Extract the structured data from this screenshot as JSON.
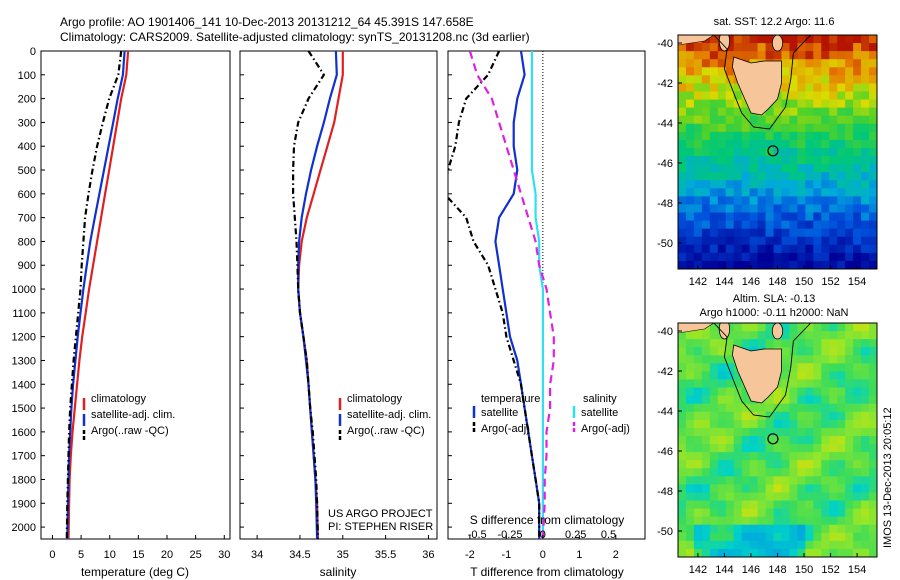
{
  "header": {
    "line1": "Argo profile: AO 1901406_141 10-Dec-2013 20131212_64 45.391S 147.658E",
    "line2": "Climatology: CARS2009. Satellite-adjusted climatology: synTS_20131208.nc (3d earlier)"
  },
  "credits": {
    "project": "US ARGO PROJECT",
    "pi": "PI: STEPHEN RISER"
  },
  "imos_stamp": "IMOS 13-Dec-2013 20:05:12",
  "colors": {
    "clim": "#e02020",
    "sat": "#1030d0",
    "argo": "#000000",
    "sal_sat": "#30e0f0",
    "sal_argo": "#e020e0"
  },
  "chart_data": [
    {
      "type": "line",
      "id": "temperature",
      "xlabel": "temperature (deg C)",
      "xlim": [
        -2,
        31
      ],
      "ylim": [
        0,
        2050
      ],
      "xticks": [
        0,
        5,
        10,
        15,
        20,
        25,
        30
      ],
      "yticks": [
        0,
        100,
        200,
        300,
        400,
        500,
        600,
        700,
        800,
        900,
        1000,
        1100,
        1200,
        1300,
        1400,
        1500,
        1600,
        1700,
        1800,
        1900,
        2000
      ],
      "legend": [
        "climatology",
        "satellite-adj. clim.",
        "Argo(..raw -QC)"
      ],
      "series": [
        {
          "name": "climatology",
          "color": "#e02020",
          "dash": "",
          "x": [
            13.2,
            12.9,
            12.0,
            11.3,
            10.6,
            9.9,
            9.2,
            8.5,
            7.8,
            7.1,
            6.4,
            5.8,
            5.2,
            4.7,
            4.3,
            3.9,
            3.5,
            3.2,
            3.0,
            2.9,
            2.8
          ],
          "y": [
            0,
            100,
            200,
            300,
            400,
            500,
            600,
            700,
            800,
            900,
            1000,
            1100,
            1200,
            1300,
            1400,
            1500,
            1600,
            1700,
            1800,
            1900,
            2050
          ]
        },
        {
          "name": "satellite-adj. clim.",
          "color": "#1030d0",
          "dash": "",
          "x": [
            12.6,
            12.3,
            11.4,
            10.6,
            9.8,
            9.0,
            8.2,
            7.4,
            6.6,
            6.0,
            5.4,
            4.9,
            4.4,
            4.0,
            3.6,
            3.3,
            3.1,
            2.9,
            2.8,
            2.7,
            2.6
          ],
          "y": [
            0,
            100,
            200,
            300,
            400,
            500,
            600,
            700,
            800,
            900,
            1000,
            1100,
            1200,
            1300,
            1400,
            1500,
            1600,
            1700,
            1800,
            1900,
            2050
          ]
        },
        {
          "name": "Argo(..raw -QC)",
          "color": "#000000",
          "dash": "6,3,1.5,3",
          "x": [
            12.0,
            11.5,
            9.9,
            8.8,
            7.8,
            7.0,
            6.3,
            5.7,
            5.4,
            5.1,
            4.9,
            4.5,
            4.1,
            3.7,
            3.4,
            3.1,
            2.9,
            2.8,
            2.7,
            2.6,
            2.5
          ],
          "y": [
            0,
            100,
            200,
            300,
            400,
            500,
            600,
            700,
            800,
            900,
            1000,
            1100,
            1200,
            1300,
            1400,
            1500,
            1600,
            1700,
            1800,
            1900,
            2050
          ]
        }
      ]
    },
    {
      "type": "line",
      "id": "salinity",
      "xlabel": "salinity",
      "xlim": [
        33.8,
        36.1
      ],
      "ylim": [
        0,
        2050
      ],
      "xticks": [
        34,
        34.5,
        35,
        35.5,
        36
      ],
      "legend": [
        "climatology",
        "satellite-adj. clim.",
        "Argo(..raw -QC)"
      ],
      "series": [
        {
          "name": "climatology",
          "color": "#e02020",
          "dash": "",
          "x": [
            35.0,
            35.0,
            34.95,
            34.9,
            34.82,
            34.74,
            34.66,
            34.58,
            34.52,
            34.49,
            34.48,
            34.5,
            34.54,
            34.58,
            34.6,
            34.62,
            34.64,
            34.66,
            34.68,
            34.7,
            34.71
          ],
          "y": [
            0,
            100,
            200,
            300,
            400,
            500,
            600,
            700,
            800,
            900,
            1000,
            1100,
            1200,
            1300,
            1400,
            1500,
            1600,
            1700,
            1800,
            1900,
            2050
          ]
        },
        {
          "name": "satellite-adj. clim.",
          "color": "#1030d0",
          "dash": "",
          "x": [
            34.92,
            34.93,
            34.85,
            34.78,
            34.7,
            34.63,
            34.57,
            34.52,
            34.49,
            34.48,
            34.48,
            34.5,
            34.54,
            34.57,
            34.6,
            34.62,
            34.64,
            34.66,
            34.68,
            34.69,
            34.7
          ],
          "y": [
            0,
            100,
            200,
            300,
            400,
            500,
            600,
            700,
            800,
            900,
            1000,
            1100,
            1200,
            1300,
            1400,
            1500,
            1600,
            1700,
            1800,
            1900,
            2050
          ]
        },
        {
          "name": "Argo(..raw -QC)",
          "color": "#000000",
          "dash": "6,3,1.5,3",
          "x": [
            34.6,
            34.78,
            34.6,
            34.48,
            34.43,
            34.42,
            34.42,
            34.44,
            34.46,
            34.47,
            34.48,
            34.5,
            34.54,
            34.58,
            34.6,
            34.62,
            34.65,
            34.67,
            34.69,
            34.7,
            34.71
          ],
          "y": [
            0,
            100,
            200,
            300,
            400,
            500,
            600,
            700,
            800,
            900,
            1000,
            1100,
            1200,
            1300,
            1400,
            1500,
            1600,
            1700,
            1800,
            1900,
            2050
          ]
        }
      ]
    },
    {
      "type": "line",
      "id": "difference",
      "xlabel": "T difference from climatology",
      "xlabel2": "S difference from climatology",
      "xlim": [
        -2.6,
        2.8
      ],
      "ylim": [
        0,
        2050
      ],
      "xticks": [
        -2,
        -1,
        0,
        1,
        2
      ],
      "xticks_s": [
        {
          "label": "-0.5",
          "pos": -1.8
        },
        {
          "label": "-0.25",
          "pos": -0.9
        },
        {
          "label": "0",
          "pos": 0
        },
        {
          "label": "0.25",
          "pos": 0.9
        },
        {
          "label": "0.5",
          "pos": 1.8
        }
      ],
      "legend_t_title": "temperature",
      "legend_s_title": "salinity",
      "legend_t": [
        "satellite",
        "Argo(-adj)"
      ],
      "legend_s": [
        "satellite",
        "Argo(-adj)"
      ],
      "series": [
        {
          "name": "satellite",
          "group": "T",
          "color": "#1030d0",
          "dash": "",
          "x": [
            -0.6,
            -0.5,
            -0.7,
            -0.8,
            -0.8,
            -0.7,
            -0.8,
            -1.2,
            -1.3,
            -1.2,
            -1.1,
            -1.0,
            -0.9,
            -0.7,
            -0.6,
            -0.5,
            -0.4,
            -0.3,
            -0.2,
            -0.1,
            -0.1
          ],
          "y": [
            0,
            100,
            200,
            300,
            400,
            500,
            600,
            700,
            800,
            900,
            1000,
            1100,
            1200,
            1300,
            1400,
            1500,
            1600,
            1700,
            1800,
            1900,
            2050
          ]
        },
        {
          "name": "Argo(-adj)",
          "group": "T",
          "color": "#000000",
          "dash": "6,3,1.5,3",
          "x": [
            -1.2,
            -1.5,
            -2.1,
            -2.3,
            -2.4,
            -2.6,
            -2.7,
            -2.1,
            -1.9,
            -1.5,
            -1.3,
            -1.1,
            -1.0,
            -0.8,
            -0.6,
            -0.5,
            -0.4,
            -0.3,
            -0.2,
            -0.1,
            -0.1
          ],
          "y": [
            0,
            100,
            200,
            300,
            400,
            500,
            600,
            700,
            800,
            900,
            1000,
            1100,
            1200,
            1300,
            1400,
            1500,
            1600,
            1700,
            1800,
            1900,
            2050
          ]
        },
        {
          "name": "satellite",
          "group": "S",
          "color": "#30e0f0",
          "dash": "",
          "x": [
            -0.3,
            -0.3,
            -0.3,
            -0.3,
            -0.3,
            -0.3,
            -0.2,
            -0.2,
            -0.1,
            -0.1,
            0,
            0,
            0,
            0,
            0,
            0,
            0,
            0,
            0,
            0,
            0
          ],
          "y": [
            0,
            100,
            200,
            300,
            400,
            500,
            600,
            700,
            800,
            900,
            1000,
            1100,
            1200,
            1300,
            1400,
            1500,
            1600,
            1700,
            1800,
            1900,
            2050
          ]
        },
        {
          "name": "Argo(-adj)",
          "group": "S",
          "color": "#e020e0",
          "dash": "8,5",
          "x": [
            -2.0,
            -1.8,
            -1.4,
            -1.2,
            -1.0,
            -0.8,
            -0.6,
            -0.4,
            -0.2,
            -0.1,
            0.1,
            0.2,
            0.3,
            0.3,
            0.2,
            0.2,
            0.1,
            0.1,
            0.05,
            0.05,
            0
          ],
          "y": [
            0,
            100,
            200,
            300,
            400,
            500,
            600,
            700,
            800,
            900,
            1000,
            1100,
            1200,
            1300,
            1400,
            1500,
            1600,
            1700,
            1800,
            1900,
            2050
          ]
        }
      ]
    },
    {
      "type": "heatmap",
      "id": "sst-map",
      "title": "sat. SST: 12.2 Argo: 11.6",
      "xlim": [
        140.5,
        155.5
      ],
      "ylim": [
        -51.3,
        -39.6
      ],
      "xticks": [
        142,
        144,
        146,
        148,
        150,
        152,
        154
      ],
      "yticks": [
        -40,
        -42,
        -44,
        -46,
        -48,
        -50
      ],
      "marker": {
        "lon": 147.658,
        "lat": -45.391
      }
    },
    {
      "type": "heatmap",
      "id": "sla-map",
      "title": "Altim. SLA: -0.13",
      "subtitle": "Argo h1000: -0.11 h2000: NaN",
      "xlim": [
        140.5,
        155.5
      ],
      "ylim": [
        -51.3,
        -39.6
      ],
      "xticks": [
        142,
        144,
        146,
        148,
        150,
        152,
        154
      ],
      "yticks": [
        -40,
        -42,
        -44,
        -46,
        -48,
        -50
      ],
      "marker": {
        "lon": 147.658,
        "lat": -45.391
      }
    }
  ]
}
